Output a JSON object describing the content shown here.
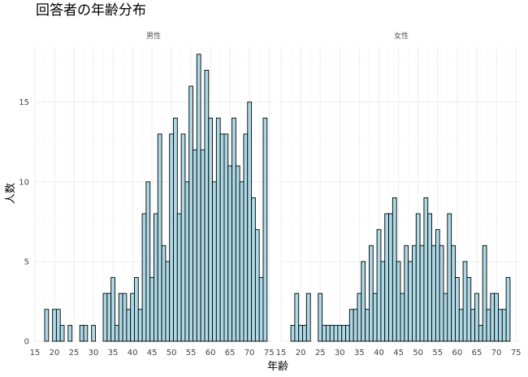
{
  "chart_data": {
    "type": "bar",
    "title": "回答者の年齢分布",
    "xlabel": "年齢",
    "ylabel": "人数",
    "xlim": [
      15,
      76
    ],
    "ylim": [
      0,
      18.5
    ],
    "x_ticks": [
      15,
      20,
      25,
      30,
      35,
      40,
      45,
      50,
      55,
      60,
      65,
      70,
      75
    ],
    "y_ticks": [
      0,
      5,
      10,
      15
    ],
    "grid": true,
    "facets": [
      {
        "name": "男性",
        "bars": [
          {
            "age": 18,
            "count": 2
          },
          {
            "age": 20,
            "count": 2
          },
          {
            "age": 21,
            "count": 2
          },
          {
            "age": 22,
            "count": 1
          },
          {
            "age": 24,
            "count": 1
          },
          {
            "age": 27,
            "count": 1
          },
          {
            "age": 28,
            "count": 1
          },
          {
            "age": 30,
            "count": 1
          },
          {
            "age": 33,
            "count": 3
          },
          {
            "age": 34,
            "count": 3
          },
          {
            "age": 35,
            "count": 4
          },
          {
            "age": 36,
            "count": 1
          },
          {
            "age": 37,
            "count": 3
          },
          {
            "age": 38,
            "count": 3
          },
          {
            "age": 39,
            "count": 2
          },
          {
            "age": 40,
            "count": 3
          },
          {
            "age": 41,
            "count": 4
          },
          {
            "age": 42,
            "count": 2
          },
          {
            "age": 43,
            "count": 8
          },
          {
            "age": 44,
            "count": 10
          },
          {
            "age": 45,
            "count": 4
          },
          {
            "age": 46,
            "count": 8
          },
          {
            "age": 47,
            "count": 13
          },
          {
            "age": 48,
            "count": 6
          },
          {
            "age": 49,
            "count": 5
          },
          {
            "age": 50,
            "count": 13
          },
          {
            "age": 51,
            "count": 14
          },
          {
            "age": 52,
            "count": 8
          },
          {
            "age": 53,
            "count": 13
          },
          {
            "age": 54,
            "count": 10
          },
          {
            "age": 55,
            "count": 16
          },
          {
            "age": 56,
            "count": 12
          },
          {
            "age": 57,
            "count": 18
          },
          {
            "age": 58,
            "count": 12
          },
          {
            "age": 59,
            "count": 17
          },
          {
            "age": 60,
            "count": 14
          },
          {
            "age": 61,
            "count": 10
          },
          {
            "age": 62,
            "count": 14
          },
          {
            "age": 63,
            "count": 13
          },
          {
            "age": 64,
            "count": 13
          },
          {
            "age": 65,
            "count": 11
          },
          {
            "age": 66,
            "count": 14
          },
          {
            "age": 67,
            "count": 11
          },
          {
            "age": 68,
            "count": 10
          },
          {
            "age": 69,
            "count": 13
          },
          {
            "age": 70,
            "count": 15
          },
          {
            "age": 71,
            "count": 9
          },
          {
            "age": 72,
            "count": 7
          },
          {
            "age": 73,
            "count": 4
          },
          {
            "age": 74,
            "count": 14
          }
        ]
      },
      {
        "name": "女性",
        "bars": [
          {
            "age": 18,
            "count": 1
          },
          {
            "age": 19,
            "count": 3
          },
          {
            "age": 20,
            "count": 1
          },
          {
            "age": 21,
            "count": 1
          },
          {
            "age": 22,
            "count": 3
          },
          {
            "age": 25,
            "count": 3
          },
          {
            "age": 26,
            "count": 1
          },
          {
            "age": 27,
            "count": 1
          },
          {
            "age": 28,
            "count": 1
          },
          {
            "age": 29,
            "count": 1
          },
          {
            "age": 30,
            "count": 1
          },
          {
            "age": 31,
            "count": 1
          },
          {
            "age": 32,
            "count": 1
          },
          {
            "age": 33,
            "count": 2
          },
          {
            "age": 34,
            "count": 2
          },
          {
            "age": 35,
            "count": 3
          },
          {
            "age": 36,
            "count": 5
          },
          {
            "age": 37,
            "count": 2
          },
          {
            "age": 38,
            "count": 6
          },
          {
            "age": 39,
            "count": 3
          },
          {
            "age": 40,
            "count": 7
          },
          {
            "age": 41,
            "count": 5
          },
          {
            "age": 42,
            "count": 8
          },
          {
            "age": 43,
            "count": 8
          },
          {
            "age": 44,
            "count": 9
          },
          {
            "age": 45,
            "count": 5
          },
          {
            "age": 46,
            "count": 3
          },
          {
            "age": 47,
            "count": 6
          },
          {
            "age": 48,
            "count": 5
          },
          {
            "age": 49,
            "count": 6
          },
          {
            "age": 50,
            "count": 8
          },
          {
            "age": 51,
            "count": 6
          },
          {
            "age": 52,
            "count": 9
          },
          {
            "age": 53,
            "count": 8
          },
          {
            "age": 54,
            "count": 6
          },
          {
            "age": 55,
            "count": 7
          },
          {
            "age": 56,
            "count": 6
          },
          {
            "age": 57,
            "count": 3
          },
          {
            "age": 58,
            "count": 8
          },
          {
            "age": 59,
            "count": 6
          },
          {
            "age": 60,
            "count": 4
          },
          {
            "age": 61,
            "count": 2
          },
          {
            "age": 62,
            "count": 5
          },
          {
            "age": 63,
            "count": 4
          },
          {
            "age": 64,
            "count": 2
          },
          {
            "age": 65,
            "count": 3
          },
          {
            "age": 66,
            "count": 1
          },
          {
            "age": 67,
            "count": 6
          },
          {
            "age": 68,
            "count": 2
          },
          {
            "age": 69,
            "count": 3
          },
          {
            "age": 70,
            "count": 3
          },
          {
            "age": 71,
            "count": 2
          },
          {
            "age": 72,
            "count": 2
          },
          {
            "age": 73,
            "count": 4
          }
        ]
      }
    ],
    "bar_fill": "#add8e6",
    "bar_stroke": "#000000"
  }
}
